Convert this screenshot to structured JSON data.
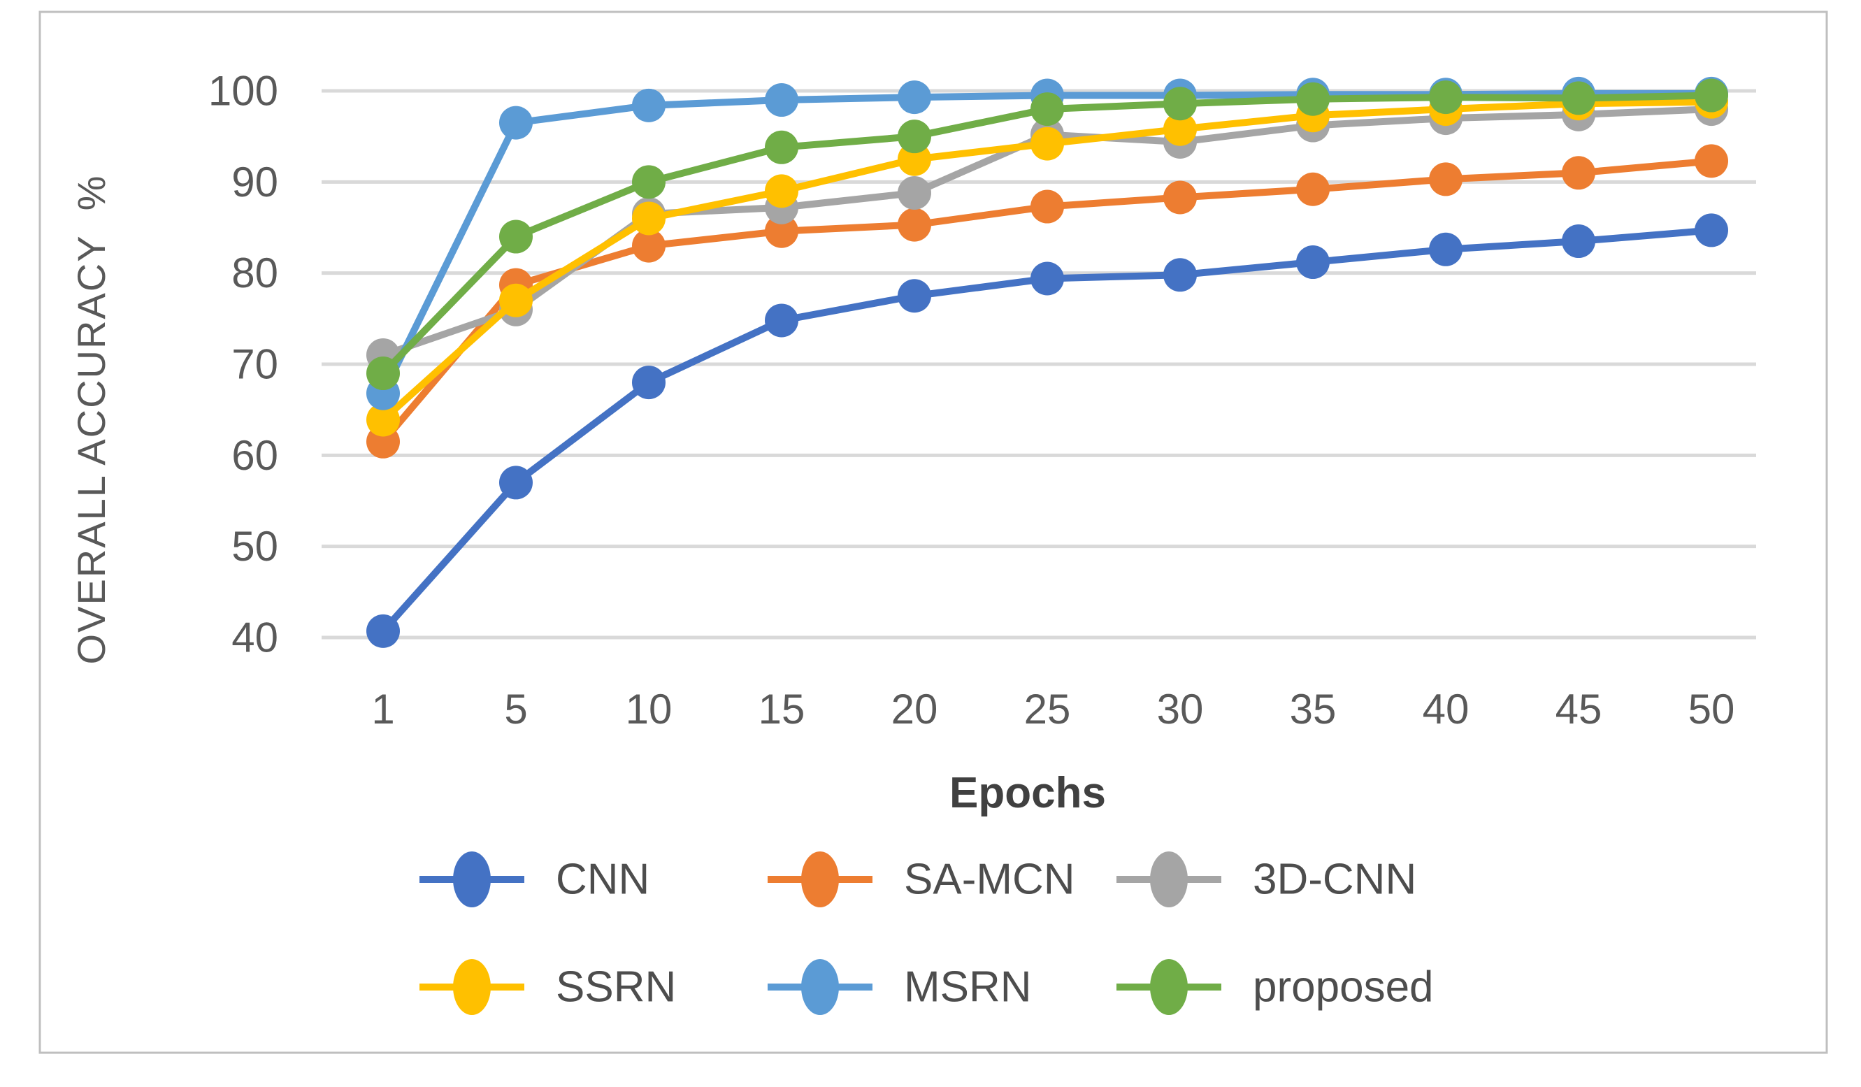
{
  "chart_data": {
    "type": "line",
    "title": "",
    "xlabel": "Epochs",
    "ylabel": "OVERALL ACCURACY  %",
    "x_categories": [
      "1",
      "5",
      "10",
      "15",
      "20",
      "25",
      "30",
      "35",
      "40",
      "45",
      "50"
    ],
    "y_ticks": [
      40,
      50,
      60,
      70,
      80,
      90,
      100
    ],
    "ylim": [
      40,
      100
    ],
    "grid": true,
    "legend_position": "bottom",
    "legend_rows": 2,
    "series": [
      {
        "name": "CNN",
        "color": "#4472C4",
        "values": [
          40.7,
          57.0,
          68.0,
          74.8,
          77.5,
          79.4,
          79.8,
          81.2,
          82.6,
          83.5,
          84.7
        ]
      },
      {
        "name": "SA-MCN",
        "color": "#ED7D31",
        "values": [
          61.5,
          78.7,
          83.0,
          84.6,
          85.3,
          87.3,
          88.3,
          89.2,
          90.3,
          91.0,
          92.3
        ]
      },
      {
        "name": "3D-CNN",
        "color": "#A5A5A5",
        "values": [
          71.0,
          76.0,
          86.5,
          87.2,
          88.8,
          95.2,
          94.4,
          96.2,
          97.0,
          97.4,
          98.0
        ]
      },
      {
        "name": "SSRN",
        "color": "#FFC000",
        "values": [
          63.9,
          77.0,
          86.0,
          89.0,
          92.5,
          94.2,
          95.8,
          97.3,
          98.0,
          98.6,
          98.8
        ]
      },
      {
        "name": "MSRN",
        "color": "#5B9BD5",
        "values": [
          66.8,
          96.5,
          98.4,
          99.0,
          99.3,
          99.5,
          99.5,
          99.6,
          99.6,
          99.7,
          99.7
        ]
      },
      {
        "name": "proposed",
        "color": "#70AD47",
        "values": [
          69.0,
          84.0,
          90.0,
          93.8,
          95.0,
          98.0,
          98.6,
          99.1,
          99.3,
          99.2,
          99.5
        ]
      }
    ]
  },
  "colors": {
    "gridline": "#D9D9D9",
    "tick_text": "#595959",
    "border": "#BFBFBF",
    "background": "#FFFFFF"
  }
}
